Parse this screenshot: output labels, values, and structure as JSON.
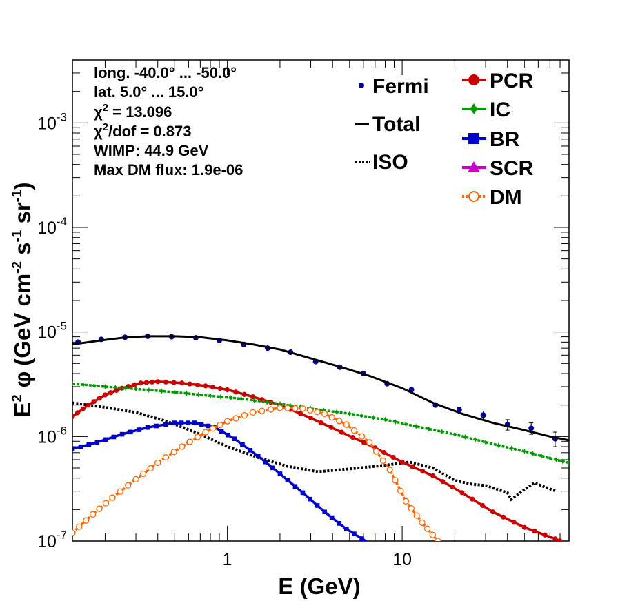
{
  "chart_data": {
    "type": "scatter",
    "x_scale": "log",
    "y_scale": "log",
    "xlim": [
      0.13,
      90
    ],
    "ylim": [
      1e-07,
      0.004
    ],
    "xlabel_base": "E (GeV)",
    "ylabel_parts": {
      "a": "E",
      "a_sup": "2",
      "phi": "φ",
      "b": "(GeV cm",
      "b_sup": "-2",
      "c": " s",
      "c_sup": "-1",
      "d": " sr",
      "d_sup": "-1",
      "e": ")"
    },
    "x_ticks": [
      {
        "value": 1,
        "label": "1"
      },
      {
        "value": 10,
        "label": "10"
      }
    ],
    "y_ticks": [
      {
        "value": 1e-07,
        "base": "10",
        "exp": "-7"
      },
      {
        "value": 1e-06,
        "base": "10",
        "exp": "-6"
      },
      {
        "value": 1e-05,
        "base": "10",
        "exp": "-5"
      },
      {
        "value": 0.0001,
        "base": "10",
        "exp": "-4"
      },
      {
        "value": 0.001,
        "base": "10",
        "exp": "-3"
      }
    ],
    "info": {
      "longitude": "long. -40.0° ... -50.0°",
      "latitude": "lat. 5.0° ... 15.0°",
      "chi2_pre": "χ",
      "chi2_sup": "2",
      "chi2_post": " = 13.096",
      "chi2dof_pre": "χ",
      "chi2dof_sup": "2",
      "chi2dof_post": "/dof = 0.873",
      "wimp": "WIMP: 44.9 GeV",
      "maxdm": "Max DM flux: 1.9e-06"
    },
    "legend": {
      "placement": "top-right",
      "left": [
        {
          "name": "Fermi",
          "style": "point"
        },
        {
          "name": "Total",
          "style": "line"
        },
        {
          "name": "ISO",
          "style": "dotted"
        }
      ],
      "right": [
        {
          "name": "PCR",
          "style": "circle",
          "color": "#cc0000"
        },
        {
          "name": "IC",
          "style": "star",
          "color": "#009900"
        },
        {
          "name": "BR",
          "style": "square",
          "color": "#0000cc"
        },
        {
          "name": "SCR",
          "style": "triangle",
          "color": "#cc00cc"
        },
        {
          "name": "DM",
          "style": "open-circle",
          "color": "#ff6600"
        }
      ]
    },
    "series": [
      {
        "name": "Fermi",
        "color": "#000099",
        "kind": "data",
        "points": [
          [
            0.14,
            8e-06
          ],
          [
            0.19,
            8.5e-06
          ],
          [
            0.26,
            8.9e-06
          ],
          [
            0.35,
            9.1e-06
          ],
          [
            0.48,
            9e-06
          ],
          [
            0.66,
            8.8e-06
          ],
          [
            0.9,
            8.3e-06
          ],
          [
            1.24,
            7.6e-06
          ],
          [
            1.7,
            7e-06
          ],
          [
            2.3,
            6.4e-06
          ],
          [
            3.2,
            5.2e-06
          ],
          [
            4.4,
            4.6e-06
          ],
          [
            6.0,
            4e-06
          ],
          [
            8.2,
            3.2e-06
          ],
          [
            11.3,
            2.8e-06
          ],
          [
            15.5,
            2e-06
          ],
          [
            21.2,
            1.8e-06
          ],
          [
            29.1,
            1.6e-06
          ],
          [
            40,
            1.3e-06
          ],
          [
            54.7,
            1.2e-06
          ],
          [
            75,
            9.5e-07
          ]
        ],
        "yerr": [
          [
            29.1,
            1.75e-06,
            1.45e-06
          ],
          [
            40,
            1.45e-06,
            1.15e-06
          ],
          [
            54.7,
            1.35e-06,
            1.05e-06
          ],
          [
            75,
            1.1e-06,
            8e-07
          ],
          [
            21.2,
            1.9e-06,
            1.7e-06
          ]
        ]
      },
      {
        "name": "Total",
        "color": "#000000",
        "kind": "line",
        "points": [
          [
            0.13,
            7.6e-06
          ],
          [
            0.18,
            8.2e-06
          ],
          [
            0.25,
            8.8e-06
          ],
          [
            0.35,
            9.1e-06
          ],
          [
            0.5,
            9.1e-06
          ],
          [
            0.7,
            8.9e-06
          ],
          [
            1.0,
            8.3e-06
          ],
          [
            1.4,
            7.6e-06
          ],
          [
            2.0,
            6.8e-06
          ],
          [
            3.0,
            5.6e-06
          ],
          [
            4.5,
            4.6e-06
          ],
          [
            6.5,
            3.8e-06
          ],
          [
            10,
            2.9e-06
          ],
          [
            15,
            2.1e-06
          ],
          [
            22,
            1.65e-06
          ],
          [
            33,
            1.35e-06
          ],
          [
            50,
            1.15e-06
          ],
          [
            70,
            1e-06
          ],
          [
            90,
            9.2e-07
          ]
        ]
      },
      {
        "name": "ISO",
        "color": "#000000",
        "kind": "dotted",
        "points": [
          [
            0.13,
            2.1e-06
          ],
          [
            0.2,
            1.9e-06
          ],
          [
            0.3,
            1.7e-06
          ],
          [
            0.45,
            1.4e-06
          ],
          [
            0.7,
            1.05e-06
          ],
          [
            1.0,
            8e-07
          ],
          [
            1.5,
            6.3e-07
          ],
          [
            2.2,
            5.2e-07
          ],
          [
            3.3,
            4.6e-07
          ],
          [
            5.0,
            4.9e-07
          ],
          [
            8,
            5.3e-07
          ],
          [
            11,
            5.7e-07
          ],
          [
            15,
            5e-07
          ],
          [
            20,
            3.8e-07
          ],
          [
            25,
            3.5e-07
          ],
          [
            30,
            3.4e-07
          ],
          [
            40,
            2.9e-07
          ],
          [
            42,
            2.5e-07
          ],
          [
            50,
            3.1e-07
          ],
          [
            57,
            3.6e-07
          ],
          [
            65,
            3.3e-07
          ],
          [
            76,
            3e-07
          ]
        ]
      },
      {
        "name": "PCR",
        "color": "#cc0000",
        "kind": "marked",
        "marker": "circle",
        "points": [
          [
            0.13,
            1.55e-06
          ],
          [
            0.16,
            2e-06
          ],
          [
            0.2,
            2.5e-06
          ],
          [
            0.25,
            2.9e-06
          ],
          [
            0.32,
            3.25e-06
          ],
          [
            0.4,
            3.35e-06
          ],
          [
            0.55,
            3.25e-06
          ],
          [
            0.75,
            3.05e-06
          ],
          [
            1.0,
            2.8e-06
          ],
          [
            1.4,
            2.4e-06
          ],
          [
            2.0,
            2e-06
          ],
          [
            3.0,
            1.5e-06
          ],
          [
            4.5,
            1.1e-06
          ],
          [
            7,
            7.8e-07
          ],
          [
            10,
            5.7e-07
          ],
          [
            15,
            4.2e-07
          ],
          [
            22,
            2.9e-07
          ],
          [
            33,
            1.9e-07
          ],
          [
            50,
            1.35e-07
          ],
          [
            75,
            1.05e-07
          ],
          [
            90,
            9.2e-08
          ]
        ]
      },
      {
        "name": "IC",
        "color": "#009900",
        "kind": "marked",
        "marker": "star",
        "points": [
          [
            0.13,
            3.2e-06
          ],
          [
            0.2,
            3e-06
          ],
          [
            0.3,
            2.85e-06
          ],
          [
            0.5,
            2.65e-06
          ],
          [
            0.8,
            2.45e-06
          ],
          [
            1.2,
            2.3e-06
          ],
          [
            2,
            2.05e-06
          ],
          [
            3,
            1.85e-06
          ],
          [
            5,
            1.65e-06
          ],
          [
            8,
            1.45e-06
          ],
          [
            12,
            1.25e-06
          ],
          [
            20,
            1.05e-06
          ],
          [
            30,
            8.8e-07
          ],
          [
            50,
            7.2e-07
          ],
          [
            70,
            6.2e-07
          ],
          [
            90,
            5.6e-07
          ]
        ]
      },
      {
        "name": "BR",
        "color": "#0000cc",
        "kind": "marked",
        "marker": "square",
        "points": [
          [
            0.13,
            7.6e-07
          ],
          [
            0.18,
            8.8e-07
          ],
          [
            0.25,
            1.05e-06
          ],
          [
            0.35,
            1.22e-06
          ],
          [
            0.5,
            1.35e-06
          ],
          [
            0.65,
            1.35e-06
          ],
          [
            0.85,
            1.22e-06
          ],
          [
            1.1,
            9.5e-07
          ],
          [
            1.5,
            6.5e-07
          ],
          [
            2.0,
            4.4e-07
          ],
          [
            2.7,
            2.9e-07
          ],
          [
            3.6,
            1.9e-07
          ],
          [
            4.8,
            1.3e-07
          ],
          [
            6.5,
            9.5e-08
          ]
        ]
      },
      {
        "name": "SCR",
        "color": "#cc00cc",
        "kind": "marked",
        "marker": "triangle",
        "points": []
      },
      {
        "name": "DM",
        "color": "#ff6600",
        "kind": "marked",
        "marker": "open-circle",
        "points": [
          [
            0.13,
            1.2e-07
          ],
          [
            0.17,
            1.8e-07
          ],
          [
            0.22,
            2.6e-07
          ],
          [
            0.3,
            3.9e-07
          ],
          [
            0.4,
            5.6e-07
          ],
          [
            0.55,
            8e-07
          ],
          [
            0.75,
            1.1e-06
          ],
          [
            1.0,
            1.4e-06
          ],
          [
            1.4,
            1.7e-06
          ],
          [
            2.0,
            1.88e-06
          ],
          [
            2.7,
            1.85e-06
          ],
          [
            3.6,
            1.65e-06
          ],
          [
            4.8,
            1.3e-06
          ],
          [
            6.5,
            8.8e-07
          ],
          [
            8.5,
            4.8e-07
          ],
          [
            10.5,
            2.4e-07
          ],
          [
            13,
            1.5e-07
          ],
          [
            16,
            1e-07
          ]
        ]
      }
    ]
  }
}
